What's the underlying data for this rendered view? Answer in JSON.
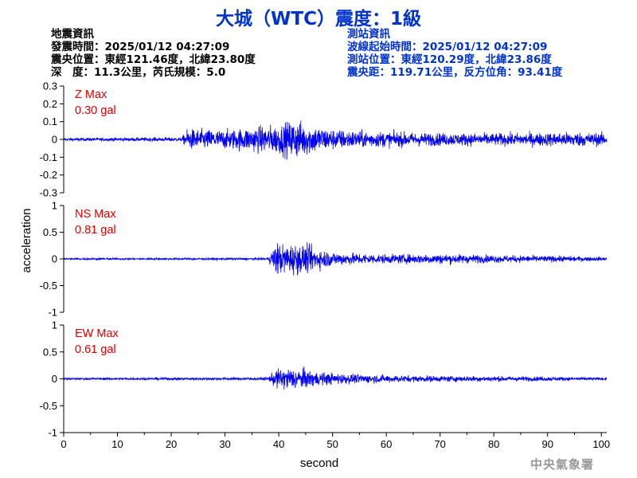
{
  "title": "大城（WTC）震度：1級",
  "event_info": {
    "heading": "地震資訊",
    "origin_time": "發震時間：2025/01/12 04:27:09",
    "epicenter": "震央位置：東經121.46度，北緯23.80度",
    "depth_magnitude": "深　度：11.3公里，芮氏規模：5.0"
  },
  "station_info": {
    "heading": "測站資訊",
    "waveform_start": "波線起始時間：2025/01/12 04:27:09",
    "location": "測站位置：東經120.29度，北緯23.86度",
    "distance": "震央距：119.71公里，反方位角：93.41度"
  },
  "footer": "中央氣象署",
  "chart_data": {
    "type": "line",
    "xlabel": "second",
    "ylabel": "acceleration",
    "xlim": [
      0,
      101
    ],
    "xticks": [
      "0",
      "10",
      "20",
      "30",
      "40",
      "50",
      "60",
      "70",
      "80",
      "90",
      "100"
    ],
    "line_color": "#0000ee",
    "panels": [
      {
        "name": "Z",
        "max_label": "Z Max",
        "max_value": "0.30 gal",
        "ylim": [
          -0.3,
          0.3
        ],
        "yticks": [
          "0.3",
          "0.2",
          "0.1",
          "0",
          "-0.1",
          "-0.2",
          "-0.3"
        ],
        "envelope": [
          [
            0,
            0.015
          ],
          [
            22,
            0.02
          ],
          [
            23,
            0.1
          ],
          [
            30,
            0.09
          ],
          [
            37,
            0.13
          ],
          [
            40,
            0.14
          ],
          [
            43,
            0.19
          ],
          [
            46,
            0.14
          ],
          [
            50,
            0.1
          ],
          [
            55,
            0.08
          ],
          [
            70,
            0.06
          ],
          [
            85,
            0.06
          ],
          [
            95,
            0.07
          ],
          [
            101,
            0.06
          ]
        ]
      },
      {
        "name": "NS",
        "max_label": "NS Max",
        "max_value": "0.81 gal",
        "ylim": [
          -1,
          1
        ],
        "yticks": [
          "1",
          "0.5",
          "0",
          "-0.5",
          "-1"
        ],
        "envelope": [
          [
            0,
            0.03
          ],
          [
            38,
            0.04
          ],
          [
            39.5,
            0.55
          ],
          [
            41,
            0.45
          ],
          [
            43,
            0.5
          ],
          [
            46,
            0.4
          ],
          [
            50,
            0.22
          ],
          [
            60,
            0.14
          ],
          [
            70,
            0.16
          ],
          [
            80,
            0.12
          ],
          [
            90,
            0.1
          ],
          [
            101,
            0.06
          ]
        ]
      },
      {
        "name": "EW",
        "max_label": "EW Max",
        "max_value": "0.61 gal",
        "ylim": [
          -1,
          1
        ],
        "yticks": [
          "1",
          "0.5",
          "0",
          "-0.5",
          "-1"
        ],
        "envelope": [
          [
            0,
            0.03
          ],
          [
            38,
            0.05
          ],
          [
            39.5,
            0.3
          ],
          [
            42,
            0.35
          ],
          [
            45,
            0.3
          ],
          [
            48,
            0.2
          ],
          [
            55,
            0.14
          ],
          [
            65,
            0.1
          ],
          [
            75,
            0.09
          ],
          [
            90,
            0.07
          ],
          [
            101,
            0.04
          ]
        ]
      }
    ]
  }
}
